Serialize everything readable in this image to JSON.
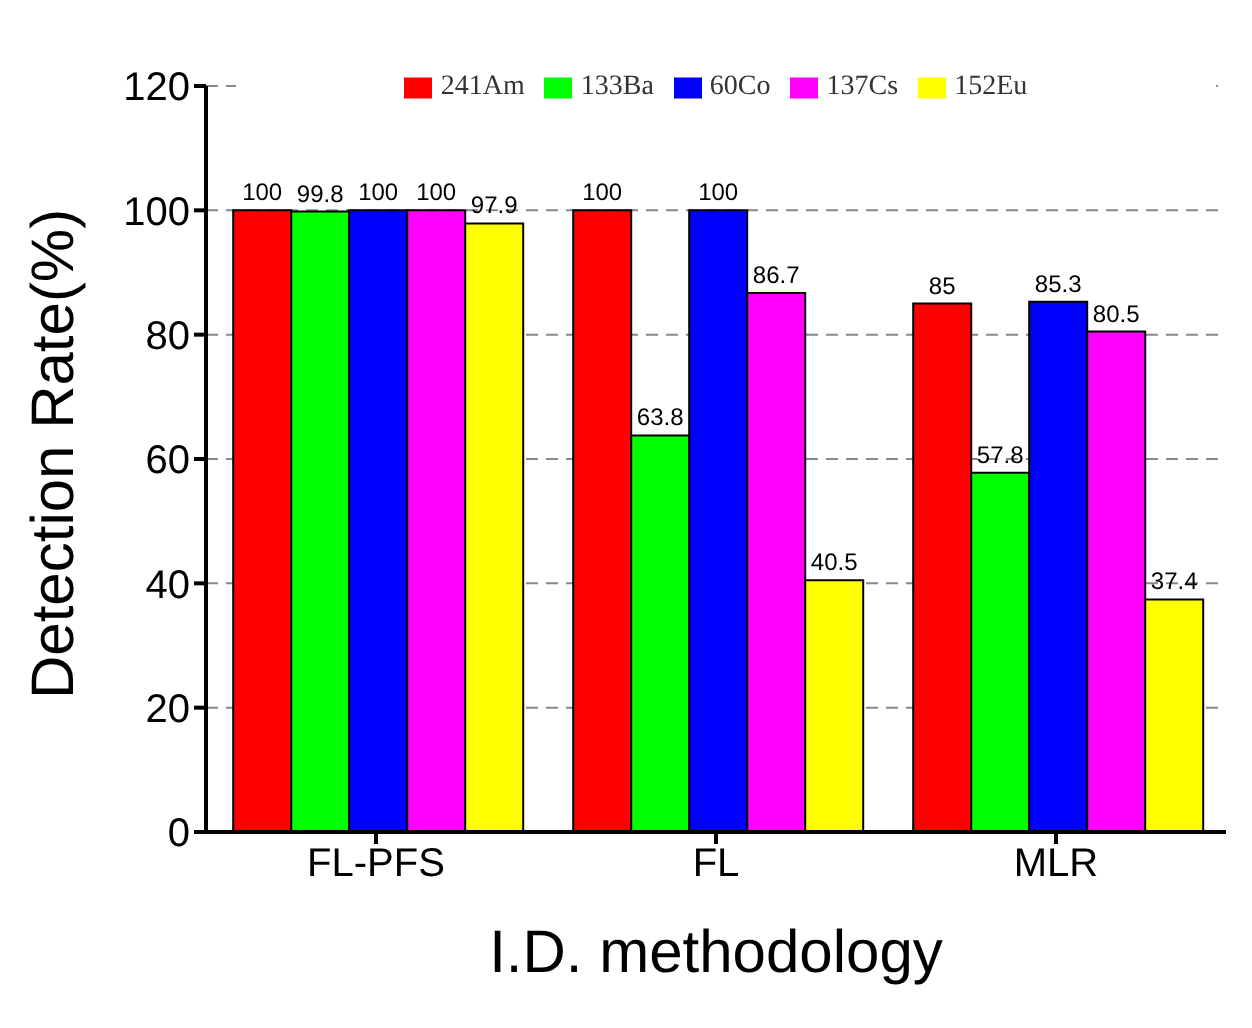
{
  "chart_data": {
    "type": "bar",
    "xlabel": "I.D. methodology",
    "ylabel": "Detection Rate(%)",
    "categories": [
      "FL-PFS",
      "FL",
      "MLR"
    ],
    "series": [
      {
        "name": "241Am",
        "color": "#ff0000",
        "values": [
          100,
          100,
          85
        ]
      },
      {
        "name": "133Ba",
        "color": "#00ff00",
        "values": [
          99.8,
          63.8,
          57.8
        ]
      },
      {
        "name": "60Co",
        "color": "#0000ff",
        "values": [
          100,
          100,
          85.3
        ]
      },
      {
        "name": "137Cs",
        "color": "#ff00ff",
        "values": [
          100,
          86.7,
          80.5
        ]
      },
      {
        "name": "152Eu",
        "color": "#ffff00",
        "values": [
          97.9,
          40.5,
          37.4
        ]
      }
    ],
    "ylim": [
      0,
      120
    ],
    "yticks": [
      0,
      20,
      40,
      60,
      80,
      100,
      120
    ],
    "grid": "y",
    "legend": "top",
    "data_labels": true
  }
}
